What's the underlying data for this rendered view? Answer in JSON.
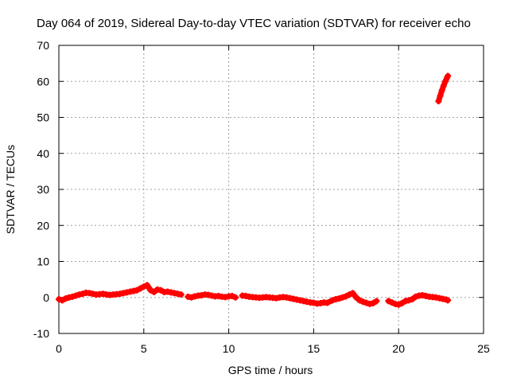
{
  "chart_data": {
    "type": "scatter",
    "title": "Day 064 of 2019, Sidereal Day-to-day VTEC variation (SDTVAR) for receiver echo",
    "xlabel": "GPS time / hours",
    "ylabel": "SDTVAR / TECUs",
    "xlim": [
      0,
      25
    ],
    "ylim": [
      -10,
      70
    ],
    "xticks": [
      0,
      5,
      10,
      15,
      20,
      25
    ],
    "yticks": [
      -10,
      0,
      10,
      20,
      30,
      40,
      50,
      60,
      70
    ],
    "grid": true,
    "marker": "cross",
    "color": "#ff0000",
    "series": [
      {
        "name": "SDTVAR",
        "x": [
          0.0,
          0.2,
          0.4,
          0.6,
          0.8,
          1.0,
          1.2,
          1.4,
          1.6,
          1.8,
          2.0,
          2.2,
          2.4,
          2.6,
          2.8,
          3.0,
          3.2,
          3.4,
          3.6,
          3.8,
          4.0,
          4.2,
          4.4,
          4.6,
          4.8,
          5.0,
          5.2,
          5.4,
          5.6,
          5.8,
          6.0,
          6.2,
          6.4,
          6.6,
          6.8,
          7.0,
          7.2,
          7.6,
          7.8,
          8.0,
          8.2,
          8.4,
          8.6,
          8.8,
          9.0,
          9.2,
          9.4,
          9.6,
          9.8,
          10.0,
          10.2,
          10.4,
          10.8,
          11.0,
          11.2,
          11.4,
          11.6,
          11.8,
          12.0,
          12.2,
          12.4,
          12.6,
          12.8,
          13.0,
          13.2,
          13.4,
          13.6,
          13.8,
          14.0,
          14.2,
          14.4,
          14.6,
          14.8,
          15.0,
          15.2,
          15.4,
          15.6,
          15.8,
          16.1,
          16.3,
          16.5,
          16.7,
          16.9,
          17.1,
          17.3,
          17.5,
          17.7,
          17.9,
          18.1,
          18.3,
          18.5,
          18.7,
          19.4,
          19.6,
          19.8,
          20.0,
          20.2,
          20.4,
          20.6,
          20.8,
          21.0,
          21.2,
          21.4,
          21.6,
          21.8,
          22.0,
          22.2,
          22.4,
          22.6,
          22.8,
          22.9,
          22.35,
          22.45,
          22.55,
          22.65,
          22.75,
          22.85,
          22.9
        ],
        "y": [
          -0.5,
          -0.8,
          -0.3,
          0.0,
          0.2,
          0.5,
          0.8,
          1.0,
          1.3,
          1.2,
          1.0,
          0.8,
          0.9,
          1.0,
          0.8,
          0.7,
          0.8,
          0.9,
          1.0,
          1.2,
          1.4,
          1.6,
          1.8,
          2.0,
          2.5,
          3.0,
          3.4,
          2.0,
          1.5,
          2.2,
          2.0,
          1.5,
          1.6,
          1.4,
          1.2,
          1.0,
          0.8,
          0.2,
          0.0,
          0.3,
          0.5,
          0.6,
          0.8,
          0.7,
          0.5,
          0.3,
          0.4,
          0.2,
          0.1,
          0.3,
          0.4,
          0.0,
          0.5,
          0.4,
          0.2,
          0.1,
          0.0,
          -0.1,
          0.0,
          0.1,
          0.0,
          -0.1,
          -0.2,
          0.0,
          0.1,
          0.0,
          -0.2,
          -0.4,
          -0.6,
          -0.8,
          -1.0,
          -1.2,
          -1.4,
          -1.5,
          -1.7,
          -1.6,
          -1.4,
          -1.5,
          -0.8,
          -0.5,
          -0.3,
          0.0,
          0.3,
          0.8,
          1.2,
          0.0,
          -0.8,
          -1.2,
          -1.5,
          -1.8,
          -1.6,
          -1.0,
          -1.0,
          -1.4,
          -1.8,
          -2.0,
          -1.6,
          -1.0,
          -0.8,
          -0.5,
          0.2,
          0.5,
          0.6,
          0.4,
          0.2,
          0.1,
          0.0,
          -0.2,
          -0.4,
          -0.6,
          -0.8,
          54.5,
          56.0,
          57.5,
          58.8,
          60.0,
          61.0,
          61.5
        ]
      }
    ]
  }
}
